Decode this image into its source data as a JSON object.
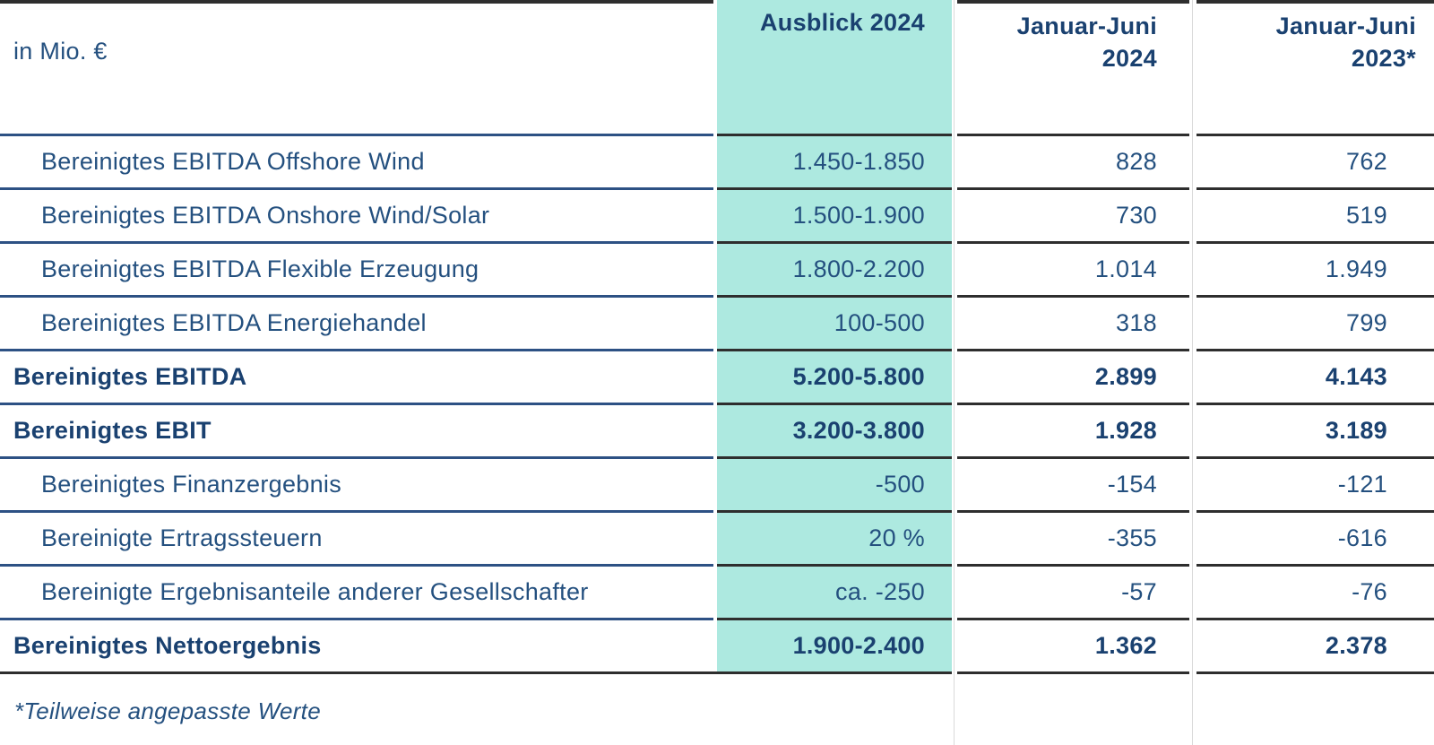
{
  "table": {
    "unit_label": "in Mio. €",
    "columns": {
      "outlook": "Ausblick 2024",
      "h1_2024": "Januar-Juni\n2024",
      "h1_2023": "Januar-Juni\n2023*"
    },
    "rows": [
      {
        "label": "Bereinigtes EBITDA Offshore Wind",
        "outlook": "1.450-1.850",
        "h1_2024": "828",
        "h1_2023": "762",
        "emphasis": false
      },
      {
        "label": "Bereinigtes EBITDA Onshore Wind/Solar",
        "outlook": "1.500-1.900",
        "h1_2024": "730",
        "h1_2023": "519",
        "emphasis": false
      },
      {
        "label": "Bereinigtes EBITDA Flexible Erzeugung",
        "outlook": "1.800-2.200",
        "h1_2024": "1.014",
        "h1_2023": "1.949",
        "emphasis": false
      },
      {
        "label": "Bereinigtes EBITDA Energiehandel",
        "outlook": "100-500",
        "h1_2024": "318",
        "h1_2023": "799",
        "emphasis": false
      },
      {
        "label": "Bereinigtes EBITDA",
        "outlook": "5.200-5.800",
        "h1_2024": "2.899",
        "h1_2023": "4.143",
        "emphasis": true
      },
      {
        "label": "Bereinigtes EBIT",
        "outlook": "3.200-3.800",
        "h1_2024": "1.928",
        "h1_2023": "3.189",
        "emphasis": true
      },
      {
        "label": "Bereinigtes Finanzergebnis",
        "outlook": "-500",
        "h1_2024": "-154",
        "h1_2023": "-121",
        "emphasis": false
      },
      {
        "label": "Bereinigte Ertragssteuern",
        "outlook": "20 %",
        "h1_2024": "-355",
        "h1_2023": "-616",
        "emphasis": false
      },
      {
        "label": "Bereinigte Ergebnisanteile anderer Gesellschafter",
        "outlook": "ca. -250",
        "h1_2024": "-57",
        "h1_2023": "-76",
        "emphasis": false
      },
      {
        "label": "Bereinigtes Nettoergebnis",
        "outlook": "1.900-2.400",
        "h1_2024": "1.362",
        "h1_2023": "2.378",
        "emphasis": true
      }
    ],
    "footnote": "*Teilweise angepasste Werte"
  },
  "colors": {
    "text_navy": "#24507f",
    "text_navy_bold": "#1a4170",
    "highlight_mint": "#ade9e0",
    "border_navy": "#2d5184",
    "border_dark": "#2e2e2e",
    "gutter_gray": "#d9d9d9"
  }
}
